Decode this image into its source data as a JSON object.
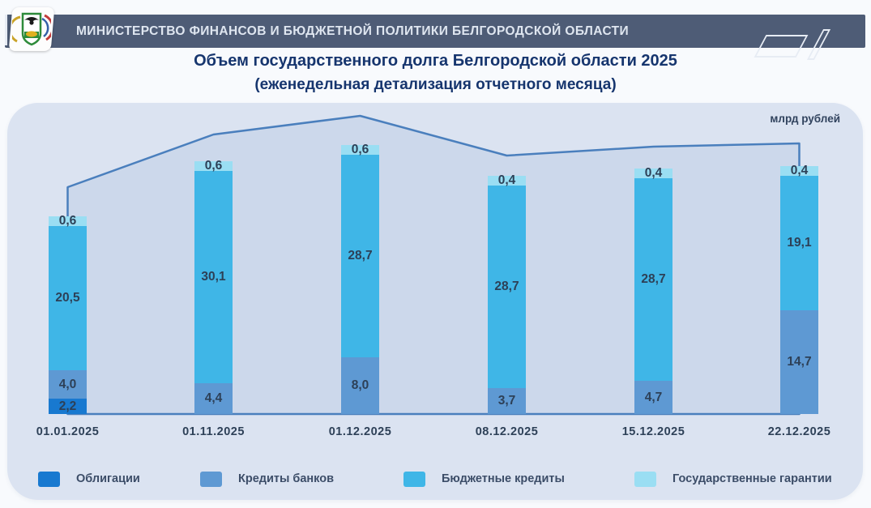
{
  "header": {
    "title": "МИНИСТЕРСТВО ФИНАНСОВ И БЮДЖЕТНОЙ ПОЛИТИКИ БЕЛГОРОДСКОЙ ОБЛАСТИ"
  },
  "title": {
    "line1": "Объем государственного долга Белгородской области 2025",
    "line2": "(еженедельная детализация отчетного месяца)"
  },
  "chart_data": {
    "type": "bar",
    "subtype": "stacked-bars-with-total-area-line",
    "title": "Объем государственного долга Белгородской области 2025 (еженедельная детализация отчетного месяца)",
    "unit_label": "млрд рублей",
    "categories": [
      "01.01.2025",
      "01.11.2025",
      "01.12.2025",
      "08.12.2025",
      "15.12.2025",
      "22.12.2025"
    ],
    "series": [
      {
        "name": "Облигации",
        "color": "#1879d0",
        "values": [
          2.2,
          0,
          0,
          0,
          0,
          0
        ]
      },
      {
        "name": "Кредиты банков",
        "color": "#5e99d3",
        "values": [
          4.0,
          4.4,
          8.0,
          3.7,
          4.7,
          14.7
        ]
      },
      {
        "name": "Бюджетные кредиты",
        "color": "#3fb6e7",
        "values": [
          20.5,
          30.1,
          28.7,
          28.7,
          28.7,
          19.1
        ]
      },
      {
        "name": "Государственные гарантии",
        "color": "#9adef3",
        "values": [
          0.6,
          0.6,
          0.6,
          0.4,
          0.4,
          0.4
        ]
      }
    ],
    "total_line": {
      "values": [
        27.3,
        35.1,
        37.3,
        32.8,
        33.8,
        34.2
      ],
      "stroke_color": "#4a7fbd",
      "fill_color": "#ccd8eb"
    },
    "value_label_decimal_separator": ",",
    "legend_position": "bottom",
    "grid": false,
    "colors": {
      "panel_background": "#dbe3f1",
      "page_background": "#f8fafd",
      "header_bar": "#4e5c76",
      "title_text": "#16356e",
      "value_text": "#2d4057"
    }
  }
}
